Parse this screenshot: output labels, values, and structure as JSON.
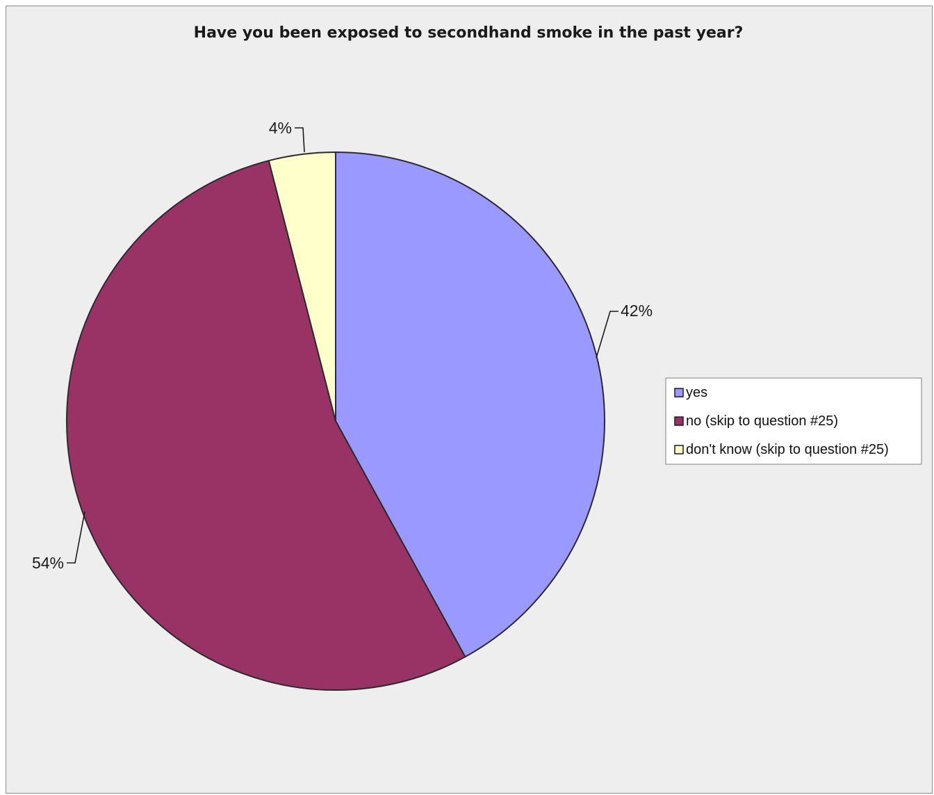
{
  "chart_data": {
    "type": "pie",
    "title": "Have you been exposed to secondhand smoke in the past year?",
    "slices": [
      {
        "label": "yes",
        "value": 42,
        "display": "42%",
        "color": "#9999ff"
      },
      {
        "label": "no (skip to question #25)",
        "value": 54,
        "display": "54%",
        "color": "#993366"
      },
      {
        "label": "don't know (skip to question #25)",
        "value": 4,
        "display": "4%",
        "color": "#ffffcc"
      }
    ],
    "start_angle_deg": 0,
    "direction": "clockwise",
    "legend_position": "right",
    "slice_border_color": "#2b2b2b",
    "background_color": "#eeeeee"
  }
}
